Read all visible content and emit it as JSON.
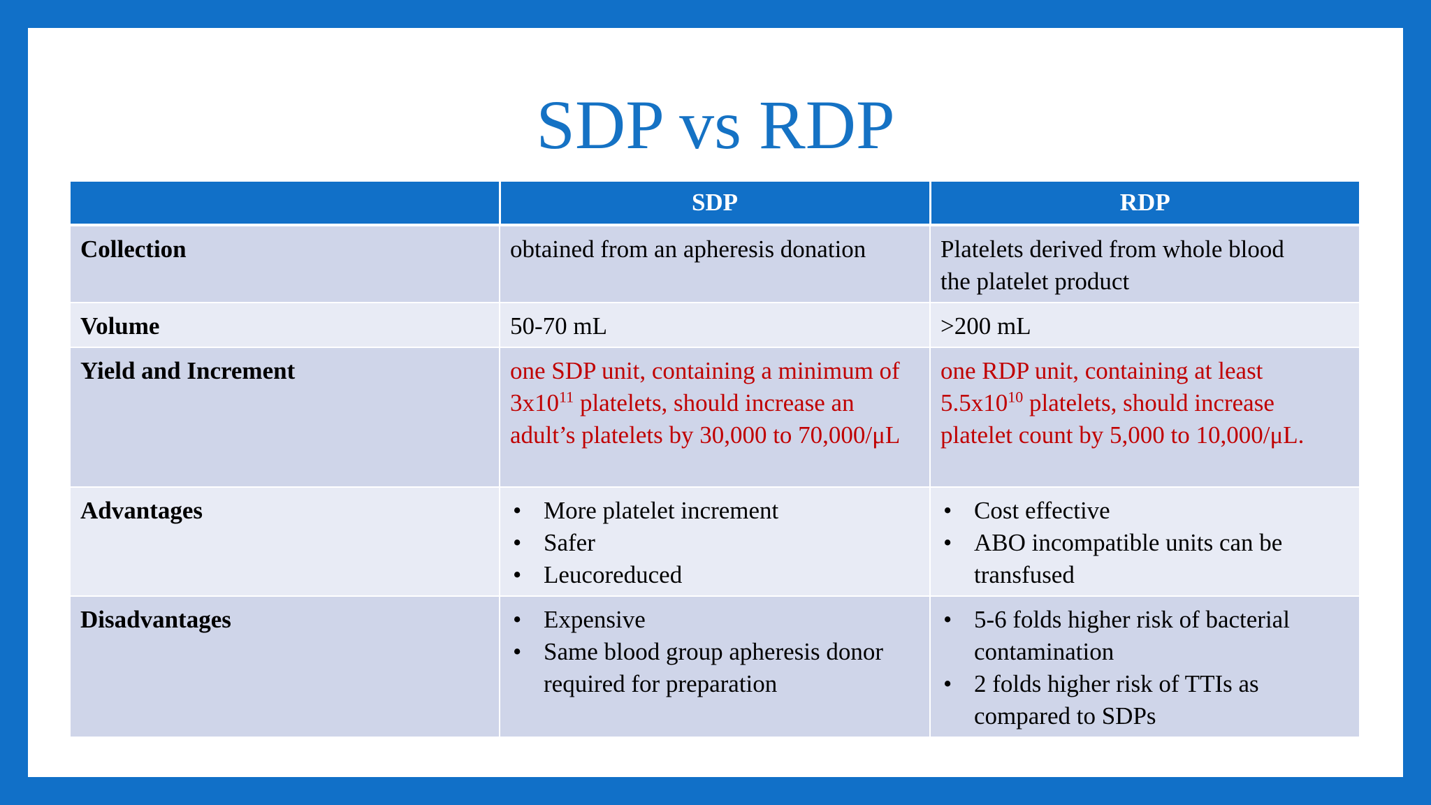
{
  "title": "SDP vs RDP",
  "table": {
    "headers": [
      "",
      "SDP",
      "RDP"
    ],
    "rows": {
      "collection": {
        "label": "Collection",
        "sdp": "obtained from an apheresis donation",
        "rdp_line1": "Platelets derived from whole blood",
        "rdp_line2": "the platelet product"
      },
      "volume": {
        "label": "Volume",
        "sdp": "50-70 mL",
        "rdp": ">200 mL"
      },
      "yield": {
        "label": "Yield and Increment",
        "sdp_pre": "one SDP unit, containing a minimum of 3x10",
        "sdp_exp": "11",
        "sdp_post": " platelets, should increase an adult’s platelets by 30,000 to 70,000/μL",
        "rdp_pre": "one RDP unit, containing at least 5.5x10",
        "rdp_exp": "10",
        "rdp_post": " platelets, should increase platelet count by 5,000 to 10,000/μL."
      },
      "advantages": {
        "label": "Advantages",
        "sdp": [
          "More platelet increment",
          "Safer",
          "Leucoreduced"
        ],
        "rdp": [
          "Cost effective",
          "ABO incompatible units can be transfused"
        ]
      },
      "disadvantages": {
        "label": "Disadvantages",
        "sdp": [
          "Expensive",
          "Same blood group apheresis donor required for preparation"
        ],
        "rdp": [
          "5-6 folds higher risk of bacterial contamination",
          "2 folds higher risk of TTIs as compared to SDPs"
        ]
      }
    }
  },
  "bullet_char": "•",
  "colors": {
    "frame": "#1170c8",
    "title": "#1572c4",
    "header_bg": "#1170c8",
    "row_dark": "#cfd5e9",
    "row_light": "#e8ebf5",
    "highlight_text": "#c00000"
  }
}
